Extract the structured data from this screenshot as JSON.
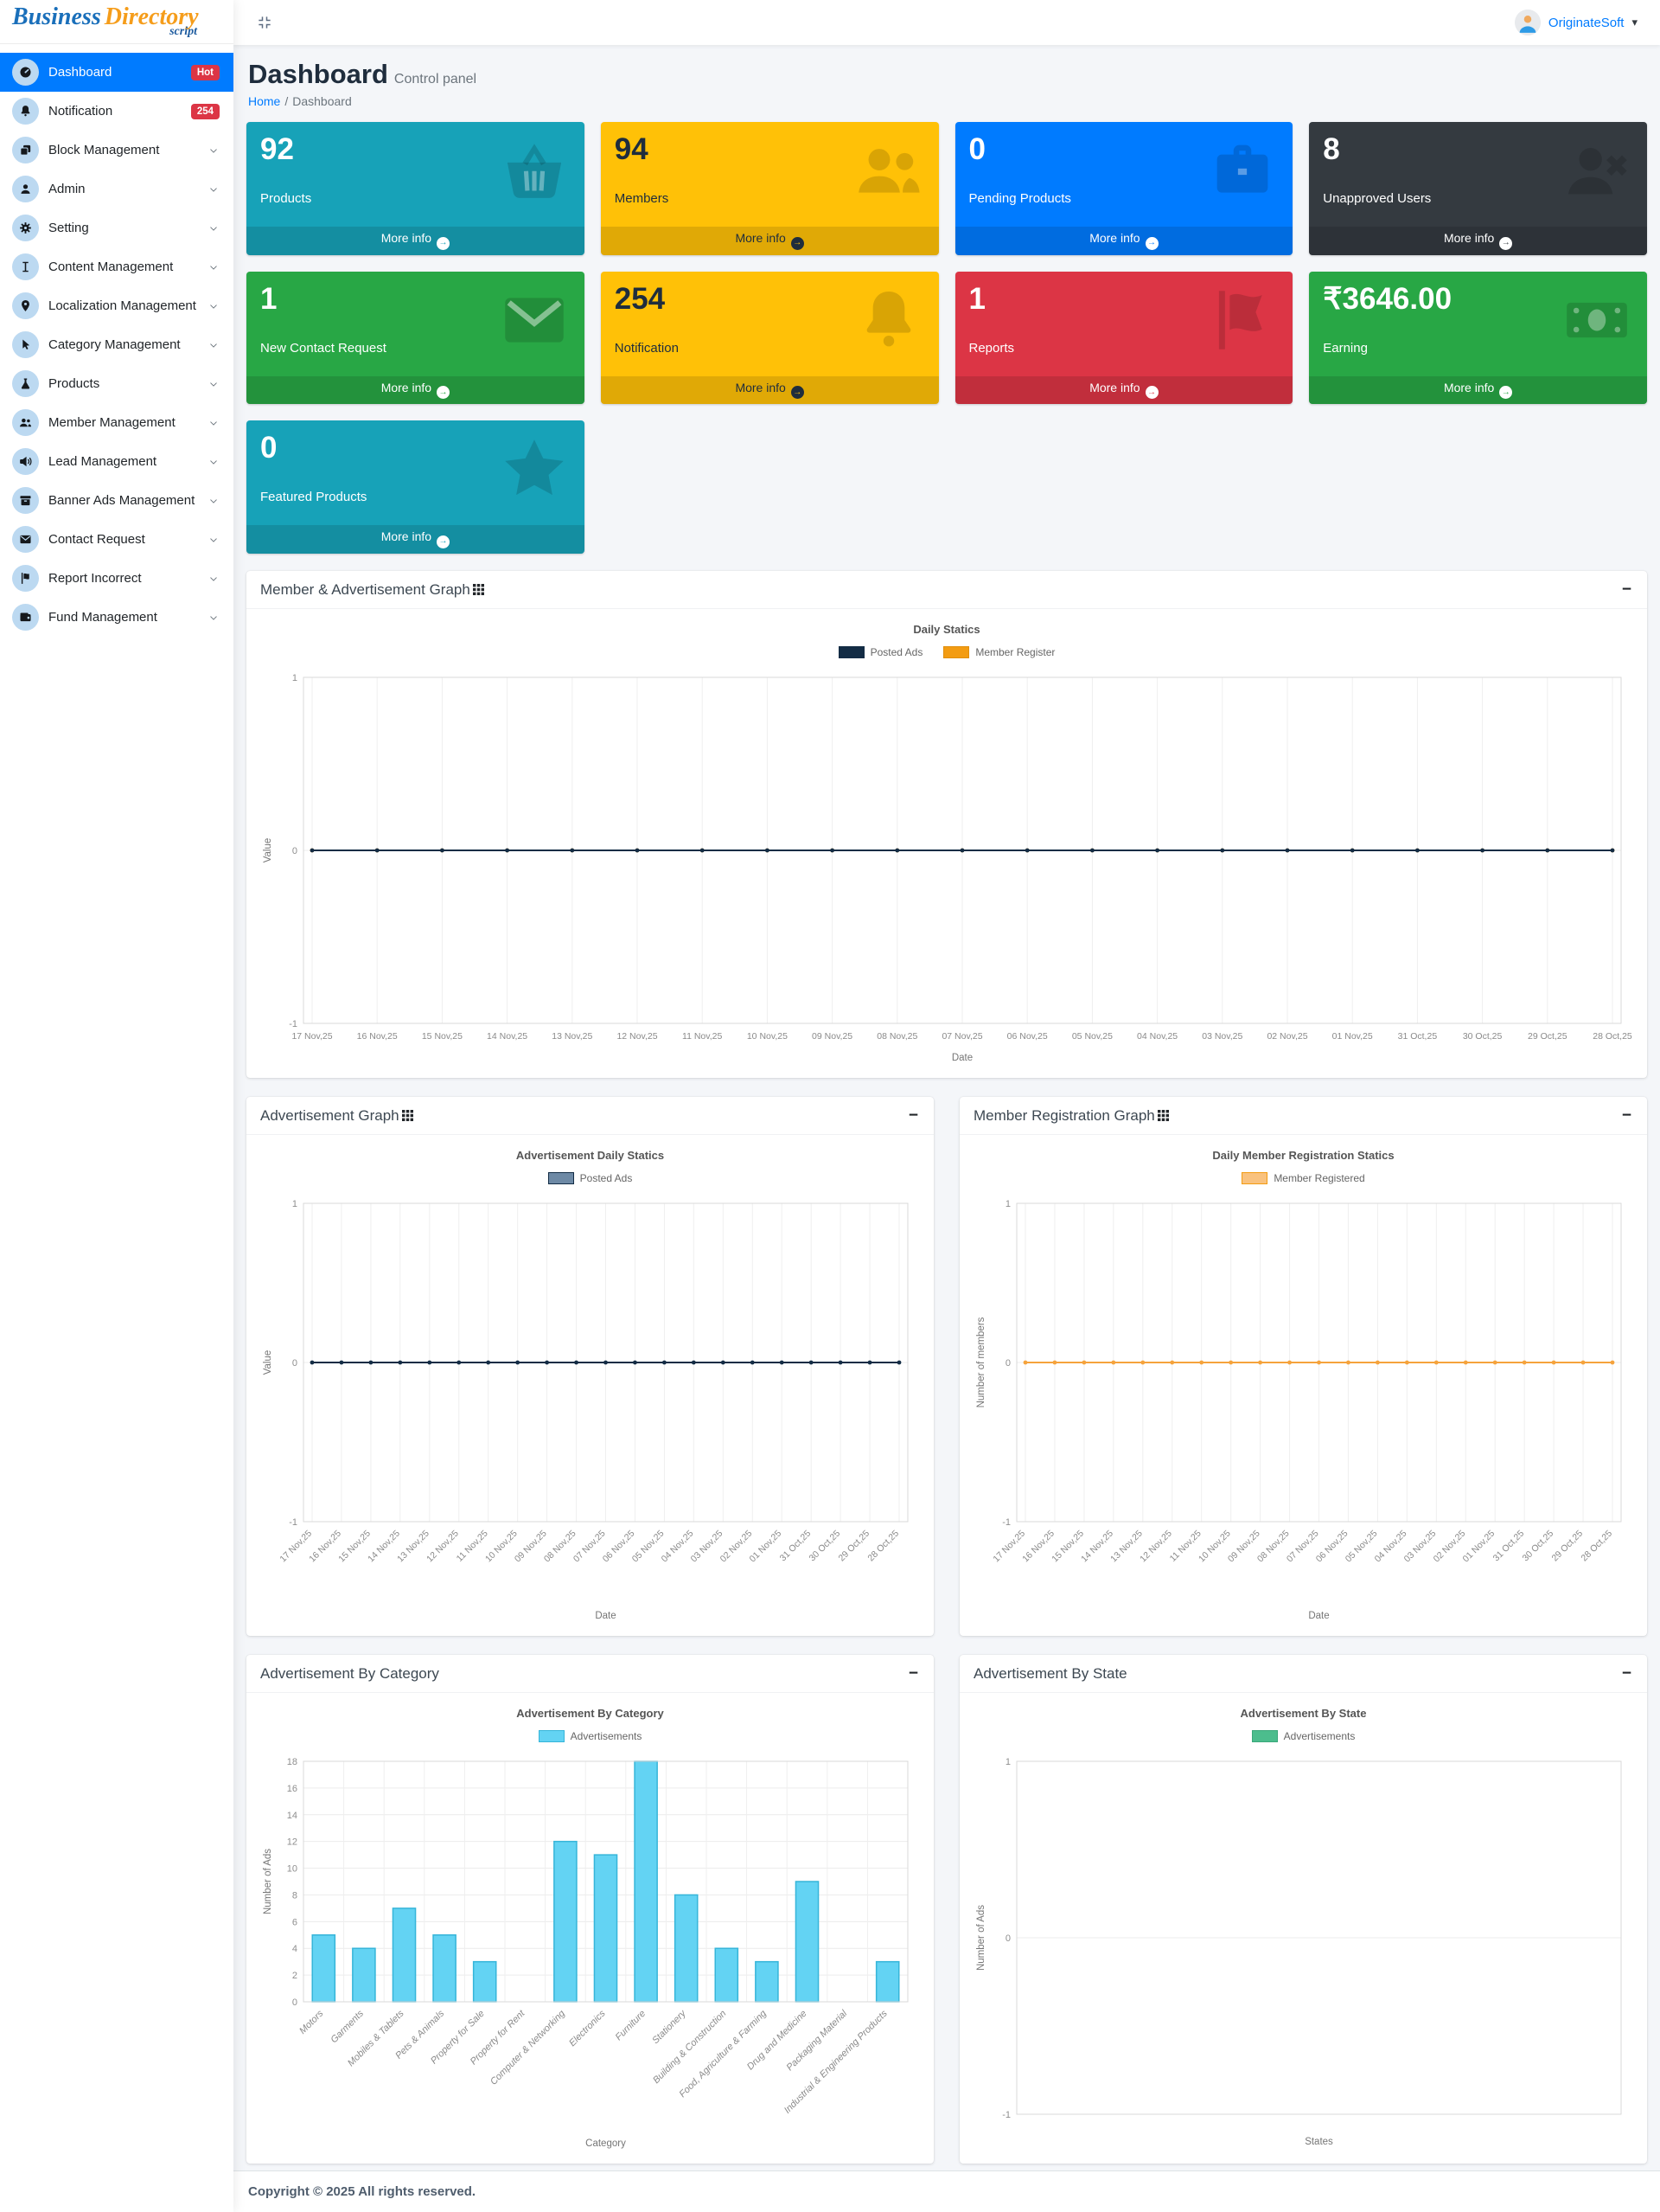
{
  "logo": {
    "part1": "Business",
    "part2": "Directory",
    "part3": "script"
  },
  "header": {
    "user_name": "OriginateSoft"
  },
  "sidebar": {
    "items": [
      {
        "label": "Dashboard",
        "icon": "speedometer",
        "badge": "Hot",
        "active": true
      },
      {
        "label": "Notification",
        "icon": "bell",
        "badge": "254"
      },
      {
        "label": "Block Management",
        "icon": "blocks",
        "chevron": true
      },
      {
        "label": "Admin",
        "icon": "user",
        "chevron": true
      },
      {
        "label": "Setting",
        "icon": "gear",
        "chevron": true
      },
      {
        "label": "Content Management",
        "icon": "text-cursor",
        "chevron": true
      },
      {
        "label": "Localization Management",
        "icon": "map-pin",
        "chevron": true
      },
      {
        "label": "Category Management",
        "icon": "cursor",
        "chevron": true
      },
      {
        "label": "Products",
        "icon": "flask",
        "chevron": true
      },
      {
        "label": "Member Management",
        "icon": "users",
        "chevron": true
      },
      {
        "label": "Lead Management",
        "icon": "megaphone",
        "chevron": true
      },
      {
        "label": "Banner Ads Management",
        "icon": "archive",
        "chevron": true
      },
      {
        "label": "Contact Request",
        "icon": "envelope",
        "chevron": true
      },
      {
        "label": "Report Incorrect",
        "icon": "flag",
        "chevron": true
      },
      {
        "label": "Fund Management",
        "icon": "wallet",
        "chevron": true
      }
    ]
  },
  "page": {
    "title": "Dashboard",
    "subtitle": "Control panel",
    "breadcrumb_home": "Home",
    "breadcrumb_sep": "/",
    "breadcrumb_current": "Dashboard"
  },
  "ui": {
    "more_info_label": "More info",
    "collapse_icon": "−"
  },
  "info_boxes": [
    {
      "value": "92",
      "label": "Products",
      "icon": "basket",
      "bg": "#17a2b8",
      "fg": "#ffffff"
    },
    {
      "value": "94",
      "label": "Members",
      "icon": "users-big",
      "bg": "#ffc107",
      "fg": "#1f2d3d"
    },
    {
      "value": "0",
      "label": "Pending Products",
      "icon": "briefcase",
      "bg": "#007bff",
      "fg": "#ffffff"
    },
    {
      "value": "8",
      "label": "Unapproved Users",
      "icon": "user-x",
      "bg": "#343a40",
      "fg": "#ffffff"
    },
    {
      "value": "1",
      "label": "New Contact Request",
      "icon": "envelope-big",
      "bg": "#28a745",
      "fg": "#ffffff"
    },
    {
      "value": "254",
      "label": "Notification",
      "icon": "bell-big",
      "bg": "#ffc107",
      "fg": "#1f2d3d"
    },
    {
      "value": "1",
      "label": "Reports",
      "icon": "flag-big",
      "bg": "#dc3545",
      "fg": "#ffffff"
    },
    {
      "value": "₹3646.00",
      "label": "Earning",
      "icon": "money",
      "bg": "#28a745",
      "fg": "#ffffff"
    },
    {
      "value": "0",
      "label": "Featured Products",
      "icon": "star",
      "bg": "#17a2b8",
      "fg": "#ffffff"
    }
  ],
  "cards": [
    {
      "title": "Member & Advertisement Graph",
      "grid_icon": true
    },
    {
      "title": "Advertisement Graph",
      "grid_icon": true
    },
    {
      "title": "Member Registration Graph",
      "grid_icon": true
    },
    {
      "title": "Advertisement By Category",
      "grid_icon": false
    },
    {
      "title": "Advertisement By State",
      "grid_icon": false
    }
  ],
  "chart_data": [
    {
      "type": "line",
      "title": "Daily Statics",
      "x": [
        "17 Nov,25",
        "16 Nov,25",
        "15 Nov,25",
        "14 Nov,25",
        "13 Nov,25",
        "12 Nov,25",
        "11 Nov,25",
        "10 Nov,25",
        "09 Nov,25",
        "08 Nov,25",
        "07 Nov,25",
        "06 Nov,25",
        "05 Nov,25",
        "04 Nov,25",
        "03 Nov,25",
        "02 Nov,25",
        "01 Nov,25",
        "31 Oct,25",
        "30 Oct,25",
        "29 Oct,25",
        "28 Oct,25"
      ],
      "xlabel": "Date",
      "ylabel": "Value",
      "ylim": [
        -1,
        1
      ],
      "yticks": [
        1,
        0,
        -1
      ],
      "grid": true,
      "legend_position": "top-center",
      "series": [
        {
          "name": "Member Register",
          "color": "#f39c12",
          "values": [
            0,
            0,
            0,
            0,
            0,
            0,
            0,
            0,
            0,
            0,
            0,
            0,
            0,
            0,
            0,
            0,
            0,
            0,
            0,
            0,
            0
          ]
        },
        {
          "name": "Posted Ads",
          "color": "#132c45",
          "values": [
            0,
            0,
            0,
            0,
            0,
            0,
            0,
            0,
            0,
            0,
            0,
            0,
            0,
            0,
            0,
            0,
            0,
            0,
            0,
            0,
            0
          ]
        }
      ],
      "legend": [
        {
          "label": "Posted Ads",
          "fill": "#132c45",
          "stroke": "#132c45"
        },
        {
          "label": "Member Register",
          "fill": "#f39c12",
          "stroke": "#e08e0b"
        }
      ]
    },
    {
      "type": "line",
      "title": "Advertisement Daily Statics",
      "x": [
        "17 Nov,25",
        "16 Nov,25",
        "15 Nov,25",
        "14 Nov,25",
        "13 Nov,25",
        "12 Nov,25",
        "11 Nov,25",
        "10 Nov,25",
        "09 Nov,25",
        "08 Nov,25",
        "07 Nov,25",
        "06 Nov,25",
        "05 Nov,25",
        "04 Nov,25",
        "03 Nov,25",
        "02 Nov,25",
        "01 Nov,25",
        "31 Oct,25",
        "30 Oct,25",
        "29 Oct,25",
        "28 Oct,25"
      ],
      "xlabel": "Date",
      "ylabel": "Value",
      "ylim": [
        -1,
        1
      ],
      "yticks": [
        1,
        0,
        -1
      ],
      "grid": true,
      "legend_position": "top-center",
      "rotate_x_labels": true,
      "series": [
        {
          "name": "Posted Ads",
          "color": "#132c45",
          "values": [
            0,
            0,
            0,
            0,
            0,
            0,
            0,
            0,
            0,
            0,
            0,
            0,
            0,
            0,
            0,
            0,
            0,
            0,
            0,
            0,
            0
          ]
        }
      ],
      "legend": [
        {
          "label": "Posted Ads",
          "fill": "#6d89a5",
          "stroke": "#132c45"
        }
      ]
    },
    {
      "type": "line",
      "title": "Daily Member Registration Statics",
      "x": [
        "17 Nov,25",
        "16 Nov,25",
        "15 Nov,25",
        "14 Nov,25",
        "13 Nov,25",
        "12 Nov,25",
        "11 Nov,25",
        "10 Nov,25",
        "09 Nov,25",
        "08 Nov,25",
        "07 Nov,25",
        "06 Nov,25",
        "05 Nov,25",
        "04 Nov,25",
        "03 Nov,25",
        "02 Nov,25",
        "01 Nov,25",
        "31 Oct,25",
        "30 Oct,25",
        "29 Oct,25",
        "28 Oct,25"
      ],
      "xlabel": "Date",
      "ylabel": "Number of members",
      "ylim": [
        -1,
        1
      ],
      "yticks": [
        1,
        0,
        -1
      ],
      "grid": true,
      "legend_position": "top-center",
      "rotate_x_labels": true,
      "series": [
        {
          "name": "Member Registered",
          "color": "#f5a33c",
          "values": [
            0,
            0,
            0,
            0,
            0,
            0,
            0,
            0,
            0,
            0,
            0,
            0,
            0,
            0,
            0,
            0,
            0,
            0,
            0,
            0,
            0
          ]
        }
      ],
      "legend": [
        {
          "label": "Member Registered",
          "fill": "#f9c27e",
          "stroke": "#f39c12"
        }
      ]
    },
    {
      "type": "bar",
      "title": "Advertisement By Category",
      "categories": [
        "Motors",
        "Garments",
        "Mobiles & Tablets",
        "Pets & Animals",
        "Property for Sale",
        "Property for Rent",
        "Computer & Networking",
        "Electronics",
        "Furniture",
        "Stationery",
        "Building & Construction",
        "Food, Agriculture & Farming",
        "Drug and Medicine",
        "Packaging Material",
        "Industrial & Engineering Products"
      ],
      "values": [
        5,
        4,
        7,
        5,
        3,
        0,
        12,
        11,
        18,
        8,
        4,
        3,
        9,
        0,
        3
      ],
      "xlabel": "Category",
      "ylabel": "Number of Ads",
      "ylim": [
        0,
        18
      ],
      "yticks": [
        18,
        16,
        14,
        12,
        10,
        8,
        6,
        4,
        2,
        0
      ],
      "grid": true,
      "legend_position": "top-center",
      "rotate_x_labels": true,
      "italic_x_labels": true,
      "bar_fill": "#63d3f3",
      "bar_stroke": "#36b5d9",
      "legend": [
        {
          "label": "Advertisements",
          "fill": "#63d3f3",
          "stroke": "#36b5d9"
        }
      ]
    },
    {
      "type": "line",
      "title": "Advertisement By State",
      "x": [],
      "xlabel": "States",
      "ylabel": "Number of Ads",
      "ylim": [
        -1,
        1
      ],
      "yticks": [
        1,
        0,
        -1
      ],
      "grid": true,
      "legend_position": "top-center",
      "series": [],
      "legend": [
        {
          "label": "Advertisements",
          "fill": "#4cbd8d",
          "stroke": "#3aa87a"
        }
      ]
    }
  ],
  "footer": {
    "text": "Copyright © 2025 All rights reserved."
  }
}
